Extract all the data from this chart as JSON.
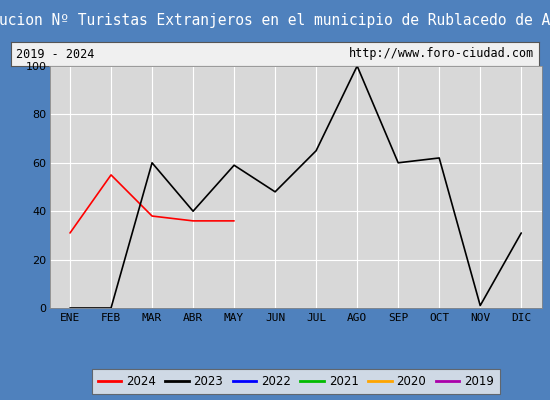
{
  "title": "Evolucion Nº Turistas Extranjeros en el municipio de Rublacedo de Abajo",
  "subtitle_left": "2019 - 2024",
  "subtitle_right": "http://www.foro-ciudad.com",
  "title_bg_color": "#4f81bd",
  "title_text_color": "#ffffff",
  "subtitle_bg_color": "#f0f0f0",
  "subtitle_text_color": "#000000",
  "plot_bg_color": "#d8d8d8",
  "months": [
    "ENE",
    "FEB",
    "MAR",
    "ABR",
    "MAY",
    "JUN",
    "JUL",
    "AGO",
    "SEP",
    "OCT",
    "NOV",
    "DIC"
  ],
  "ylim": [
    0,
    100
  ],
  "yticks": [
    0,
    20,
    40,
    60,
    80,
    100
  ],
  "series": {
    "2024": {
      "color": "#ff0000",
      "data": [
        31,
        55,
        38,
        36,
        36,
        null,
        null,
        null,
        null,
        null,
        null,
        null
      ]
    },
    "2023": {
      "color": "#000000",
      "data": [
        0,
        0,
        60,
        40,
        59,
        48,
        65,
        100,
        60,
        62,
        1,
        31
      ]
    },
    "2022": {
      "color": "#0000ff",
      "data": [
        null,
        null,
        null,
        null,
        null,
        null,
        null,
        null,
        null,
        null,
        null,
        null
      ]
    },
    "2021": {
      "color": "#00bb00",
      "data": [
        null,
        null,
        null,
        null,
        null,
        null,
        null,
        null,
        null,
        null,
        null,
        null
      ]
    },
    "2020": {
      "color": "#ffa500",
      "data": [
        null,
        null,
        null,
        null,
        null,
        null,
        null,
        null,
        null,
        null,
        null,
        null
      ]
    },
    "2019": {
      "color": "#aa00aa",
      "data": [
        null,
        null,
        null,
        null,
        null,
        null,
        null,
        null,
        null,
        null,
        null,
        null
      ]
    }
  },
  "legend_order": [
    "2024",
    "2023",
    "2022",
    "2021",
    "2020",
    "2019"
  ],
  "title_fontsize": 10.5,
  "subtitle_fontsize": 8.5,
  "tick_fontsize": 8,
  "legend_fontsize": 8.5
}
